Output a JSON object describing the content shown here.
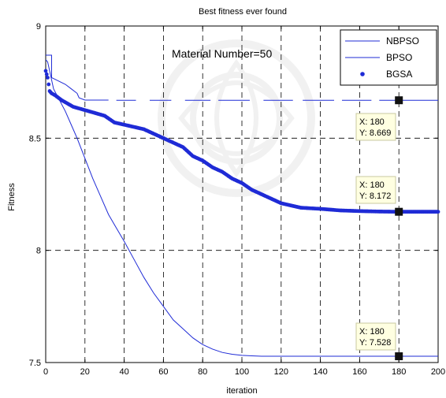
{
  "chart_data": {
    "type": "line",
    "title": "Best fitness ever found",
    "annotation": "Material Number=50",
    "xlabel": "iteration",
    "ylabel": "Fitness",
    "xlim": [
      0,
      200
    ],
    "ylim": [
      7.5,
      9
    ],
    "xticks": [
      "0",
      "20",
      "40",
      "60",
      "80",
      "100",
      "120",
      "140",
      "160",
      "180",
      "200"
    ],
    "yticks": [
      "7.5",
      "8",
      "8.5",
      "9"
    ],
    "grid": true,
    "grid_style": "dashed",
    "legend_position": "top-right",
    "series": [
      {
        "name": "NBPSO",
        "style": "thin-line",
        "color": "#1f2bd6",
        "x": [
          0,
          3,
          3,
          10,
          13,
          16,
          17,
          20,
          23,
          26,
          32,
          32,
          36,
          44,
          52,
          60,
          70,
          80,
          90,
          100,
          112,
          125,
          140,
          160,
          180,
          200
        ],
        "y": [
          8.87,
          8.87,
          8.77,
          8.74,
          8.72,
          8.7,
          8.68,
          8.67,
          8.67,
          8.67,
          8.67,
          8.67,
          8.669,
          8.669,
          8.669,
          8.669,
          8.669,
          8.669,
          8.669,
          8.669,
          8.669,
          8.669,
          8.669,
          8.669,
          8.669,
          8.669
        ]
      },
      {
        "name": "BPSO",
        "style": "thin-line",
        "color": "#1f2bd6",
        "x": [
          0,
          1,
          2,
          4,
          7,
          10,
          13,
          16,
          20,
          24,
          28,
          32,
          36,
          40,
          45,
          50,
          55,
          60,
          65,
          70,
          75,
          80,
          85,
          90,
          95,
          100,
          105,
          110,
          120,
          140,
          160,
          180,
          200
        ],
        "y": [
          8.85,
          8.84,
          8.8,
          8.72,
          8.67,
          8.62,
          8.56,
          8.5,
          8.41,
          8.32,
          8.24,
          8.16,
          8.1,
          8.04,
          7.96,
          7.88,
          7.81,
          7.75,
          7.69,
          7.65,
          7.61,
          7.58,
          7.56,
          7.545,
          7.537,
          7.532,
          7.53,
          7.528,
          7.528,
          7.528,
          7.528,
          7.528,
          7.528
        ]
      },
      {
        "name": "BGSA",
        "style": "markers",
        "color": "#1f2bd6",
        "x": [
          0,
          1,
          2,
          3,
          5,
          8,
          10,
          14,
          18,
          22,
          26,
          30,
          35,
          40,
          45,
          50,
          55,
          60,
          65,
          70,
          75,
          80,
          85,
          90,
          95,
          100,
          105,
          110,
          115,
          120,
          130,
          140,
          150,
          160,
          170,
          180,
          190,
          200
        ],
        "y": [
          8.8,
          8.77,
          8.71,
          8.7,
          8.69,
          8.67,
          8.66,
          8.64,
          8.63,
          8.62,
          8.61,
          8.6,
          8.57,
          8.56,
          8.55,
          8.54,
          8.52,
          8.5,
          8.48,
          8.46,
          8.42,
          8.4,
          8.37,
          8.35,
          8.32,
          8.3,
          8.27,
          8.25,
          8.23,
          8.21,
          8.19,
          8.185,
          8.178,
          8.175,
          8.173,
          8.172,
          8.172,
          8.172
        ]
      }
    ],
    "datatips": [
      {
        "x": 180,
        "y": 8.669,
        "label_x": "X: 180",
        "label_y": "Y: 8.669"
      },
      {
        "x": 180,
        "y": 8.172,
        "label_x": "X: 180",
        "label_y": "Y: 8.172"
      },
      {
        "x": 180,
        "y": 7.528,
        "label_x": "X: 180",
        "label_y": "Y: 7.528"
      }
    ]
  },
  "colors": {
    "series": "#1f2bd6",
    "axis": "#000000",
    "grid": "#000000",
    "datatip_fill": "#ffffe1",
    "datatip_border": "#c8c8a0",
    "marker": "#111111",
    "watermark": "#d9d9d9"
  },
  "watermark": {
    "icon": "ornament-icon"
  }
}
